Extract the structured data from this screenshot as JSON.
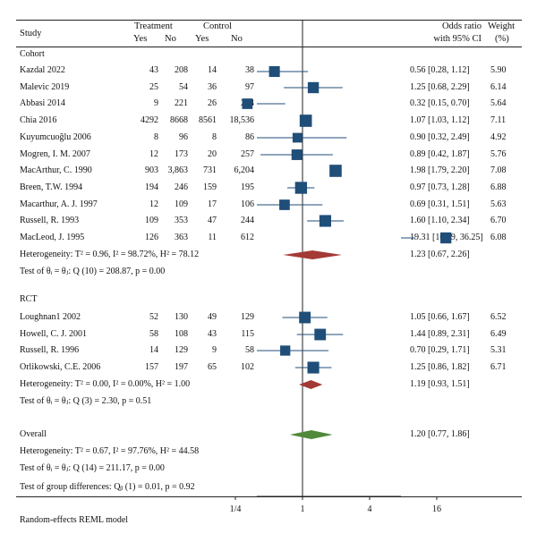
{
  "header": {
    "study": "Study",
    "treatment": "Treatment",
    "control": "Control",
    "yes": "Yes",
    "no": "No",
    "or_line1": "Odds ratio",
    "or_line2": "with 95% CI",
    "weight_line1": "Weight",
    "weight_line2": "(%)"
  },
  "groups": [
    {
      "name": "Cohort",
      "studies": [
        {
          "study": "Kazdal 2022",
          "t_yes": "43",
          "t_no": "208",
          "c_yes": "14",
          "c_no": "38",
          "ci": "0.56 [0.28, 1.12]",
          "weight": "5.90"
        },
        {
          "study": "Malevic 2019",
          "t_yes": "25",
          "t_no": "54",
          "c_yes": "36",
          "c_no": "97",
          "ci": "1.25 [0.68, 2.29]",
          "weight": "6.14"
        },
        {
          "study": "Abbasi 2014",
          "t_yes": "9",
          "t_no": "221",
          "c_yes": "26",
          "c_no": "204",
          "ci": "0.32 [0.15, 0.70]",
          "weight": "5.64"
        },
        {
          "study": "Chia 2016",
          "t_yes": "4292",
          "t_no": "8668",
          "c_yes": "8561",
          "c_no": "18,536",
          "ci": "1.07 [1.03, 1.12]",
          "weight": "7.11"
        },
        {
          "study": "Kuyumcuoğlu 2006",
          "t_yes": "8",
          "t_no": "96",
          "c_yes": "8",
          "c_no": "86",
          "ci": "0.90 [0.32, 2.49]",
          "weight": "4.92"
        },
        {
          "study": "Mogren, I. M. 2007",
          "t_yes": "12",
          "t_no": "173",
          "c_yes": "20",
          "c_no": "257",
          "ci": "0.89 [0.42, 1.87]",
          "weight": "5.76"
        },
        {
          "study": "MacArthur, C. 1990",
          "t_yes": "903",
          "t_no": "3,863",
          "c_yes": "731",
          "c_no": "6,204",
          "ci": "1.98 [1.79, 2.20]",
          "weight": "7.08"
        },
        {
          "study": "Breen, T.W. 1994",
          "t_yes": "194",
          "t_no": "246",
          "c_yes": "159",
          "c_no": "195",
          "ci": "0.97 [0.73, 1.28]",
          "weight": "6.88"
        },
        {
          "study": "Macarthur, A. J. 1997",
          "t_yes": "12",
          "t_no": "109",
          "c_yes": "17",
          "c_no": "106",
          "ci": "0.69 [0.31, 1.51]",
          "weight": "5.63"
        },
        {
          "study": "Russell, R. 1993",
          "t_yes": "109",
          "t_no": "353",
          "c_yes": "47",
          "c_no": "244",
          "ci": "1.60 [1.10, 2.34]",
          "weight": "6.70"
        },
        {
          "study": "MacLeod, J. 1995",
          "t_yes": "126",
          "t_no": "363",
          "c_yes": "11",
          "c_no": "612",
          "ci": "19.31 [10.29, 36.25]",
          "weight": "6.08"
        }
      ],
      "heterogeneity": "Heterogeneity: T² = 0.96, I² = 98.72%, H² = 78.12",
      "test": "Test of θᵢ = θⱼ: Q (10) = 208.87, p = 0.00",
      "pooled_ci": "1.23 [0.67, 2.26]"
    },
    {
      "name": "RCT",
      "studies": [
        {
          "study": "Loughnan1 2002",
          "t_yes": "52",
          "t_no": "130",
          "c_yes": "49",
          "c_no": "129",
          "ci": "1.05 [0.66, 1.67]",
          "weight": "6.52"
        },
        {
          "study": "Howell, C. J. 2001",
          "t_yes": "58",
          "t_no": "108",
          "c_yes": "43",
          "c_no": "115",
          "ci": "1.44 [0.89, 2.31]",
          "weight": "6.49"
        },
        {
          "study": "Russell, R. 1996",
          "t_yes": "14",
          "t_no": "129",
          "c_yes": "9",
          "c_no": "58",
          "ci": "0.70 [0.29, 1.71]",
          "weight": "5.31"
        },
        {
          "study": "Orlikowski, C.E. 2006",
          "t_yes": "157",
          "t_no": "197",
          "c_yes": "65",
          "c_no": "102",
          "ci": "1.25 [0.86, 1.82]",
          "weight": "6.71"
        }
      ],
      "heterogeneity": "Heterogeneity: T² = 0.00, I² = 0.00%, H² = 1.00",
      "test": "Test of θᵢ = θⱼ: Q (3) = 2.30, p = 0.51",
      "pooled_ci": "1.19 [0.93, 1.51]"
    }
  ],
  "overall": {
    "label": "Overall",
    "ci": "1.20 [0.77, 1.86]",
    "heterogeneity": "Heterogeneity: T² = 0.67, I² = 97.76%, H² = 44.58",
    "test": "Test of θᵢ = θⱼ: Q (14) = 211.17, p = 0.00",
    "group_test": "Test of group differences: Qᵦ (1) = 0.01, p = 0.92"
  },
  "footer": {
    "model": "Random-effects REML model"
  },
  "colors": {
    "marker": "#1f4e79",
    "cohort_diamond": "#a33a35",
    "rct_diamond": "#a33a35",
    "overall_diamond": "#4e8a3a",
    "line": "#222222"
  },
  "chart_data": {
    "type": "scatter",
    "subtype": "forest-plot",
    "x_scale": "log2",
    "x_ticks": [
      "1/4",
      "1",
      "4",
      "16"
    ],
    "x_tick_values": [
      0.25,
      1,
      4,
      16
    ],
    "reference_line": 1,
    "series": [
      {
        "name": "Cohort",
        "points": [
          {
            "label": "Kazdal 2022",
            "or": 0.56,
            "lo": 0.28,
            "hi": 1.12,
            "weight": 5.9
          },
          {
            "label": "Malevic 2019",
            "or": 1.25,
            "lo": 0.68,
            "hi": 2.29,
            "weight": 6.14
          },
          {
            "label": "Abbasi 2014",
            "or": 0.32,
            "lo": 0.15,
            "hi": 0.7,
            "weight": 5.64
          },
          {
            "label": "Chia 2016",
            "or": 1.07,
            "lo": 1.03,
            "hi": 1.12,
            "weight": 7.11
          },
          {
            "label": "Kuyumcuoğlu 2006",
            "or": 0.9,
            "lo": 0.32,
            "hi": 2.49,
            "weight": 4.92
          },
          {
            "label": "Mogren, I. M. 2007",
            "or": 0.89,
            "lo": 0.42,
            "hi": 1.87,
            "weight": 5.76
          },
          {
            "label": "MacArthur, C. 1990",
            "or": 1.98,
            "lo": 1.79,
            "hi": 2.2,
            "weight": 7.08
          },
          {
            "label": "Breen, T.W. 1994",
            "or": 0.97,
            "lo": 0.73,
            "hi": 1.28,
            "weight": 6.88
          },
          {
            "label": "Macarthur, A. J. 1997",
            "or": 0.69,
            "lo": 0.31,
            "hi": 1.51,
            "weight": 5.63
          },
          {
            "label": "Russell, R. 1993",
            "or": 1.6,
            "lo": 1.1,
            "hi": 2.34,
            "weight": 6.7
          },
          {
            "label": "MacLeod, J. 1995",
            "or": 19.31,
            "lo": 10.29,
            "hi": 36.25,
            "weight": 6.08
          }
        ],
        "pooled": {
          "or": 1.23,
          "lo": 0.67,
          "hi": 2.26
        }
      },
      {
        "name": "RCT",
        "points": [
          {
            "label": "Loughnan1 2002",
            "or": 1.05,
            "lo": 0.66,
            "hi": 1.67,
            "weight": 6.52
          },
          {
            "label": "Howell, C. J. 2001",
            "or": 1.44,
            "lo": 0.89,
            "hi": 2.31,
            "weight": 6.49
          },
          {
            "label": "Russell, R. 1996",
            "or": 0.7,
            "lo": 0.29,
            "hi": 1.71,
            "weight": 5.31
          },
          {
            "label": "Orlikowski, C.E. 2006",
            "or": 1.25,
            "lo": 0.86,
            "hi": 1.82,
            "weight": 6.71
          }
        ],
        "pooled": {
          "or": 1.19,
          "lo": 0.93,
          "hi": 1.51
        }
      }
    ],
    "overall": {
      "or": 1.2,
      "lo": 0.77,
      "hi": 1.86
    }
  }
}
